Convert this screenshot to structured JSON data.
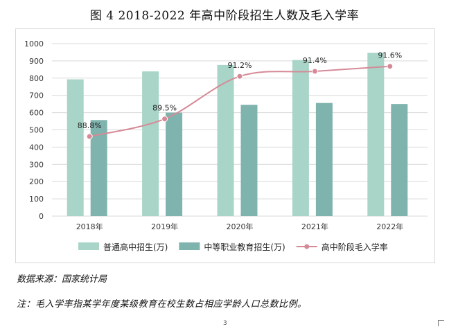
{
  "page": {
    "title": "图 4 2018-2022 年高中阶段招生人数及毛入学率",
    "source": "数据来源：国家统计局",
    "note": "注：毛入学率指某学年度某级教育在校生数占相应学龄人口总数比例。",
    "page_mark": "3"
  },
  "chart_data": {
    "type": "bar",
    "categories": [
      "2018年",
      "2019年",
      "2020年",
      "2021年",
      "2022年"
    ],
    "ylim": [
      0,
      1000
    ],
    "yticks": [
      0,
      100,
      200,
      300,
      400,
      500,
      600,
      700,
      800,
      900,
      1000
    ],
    "grid": true,
    "legend_position": "bottom",
    "series": [
      {
        "name": "普通高中招生(万)",
        "type": "bar",
        "color": "#a8d5c8",
        "values": [
          793,
          839,
          876,
          905,
          947
        ]
      },
      {
        "name": "中等职业教育招生(万)",
        "type": "bar",
        "color": "#7fb3ad",
        "values": [
          557,
          600,
          645,
          656,
          650
        ]
      },
      {
        "name": "高中阶段毛入学率",
        "type": "line",
        "color": "#d58a97",
        "values": [
          88.8,
          89.5,
          91.2,
          91.4,
          91.6
        ],
        "labels": [
          "88.8%",
          "89.5%",
          "91.2%",
          "91.4%",
          "91.6%"
        ]
      }
    ]
  }
}
